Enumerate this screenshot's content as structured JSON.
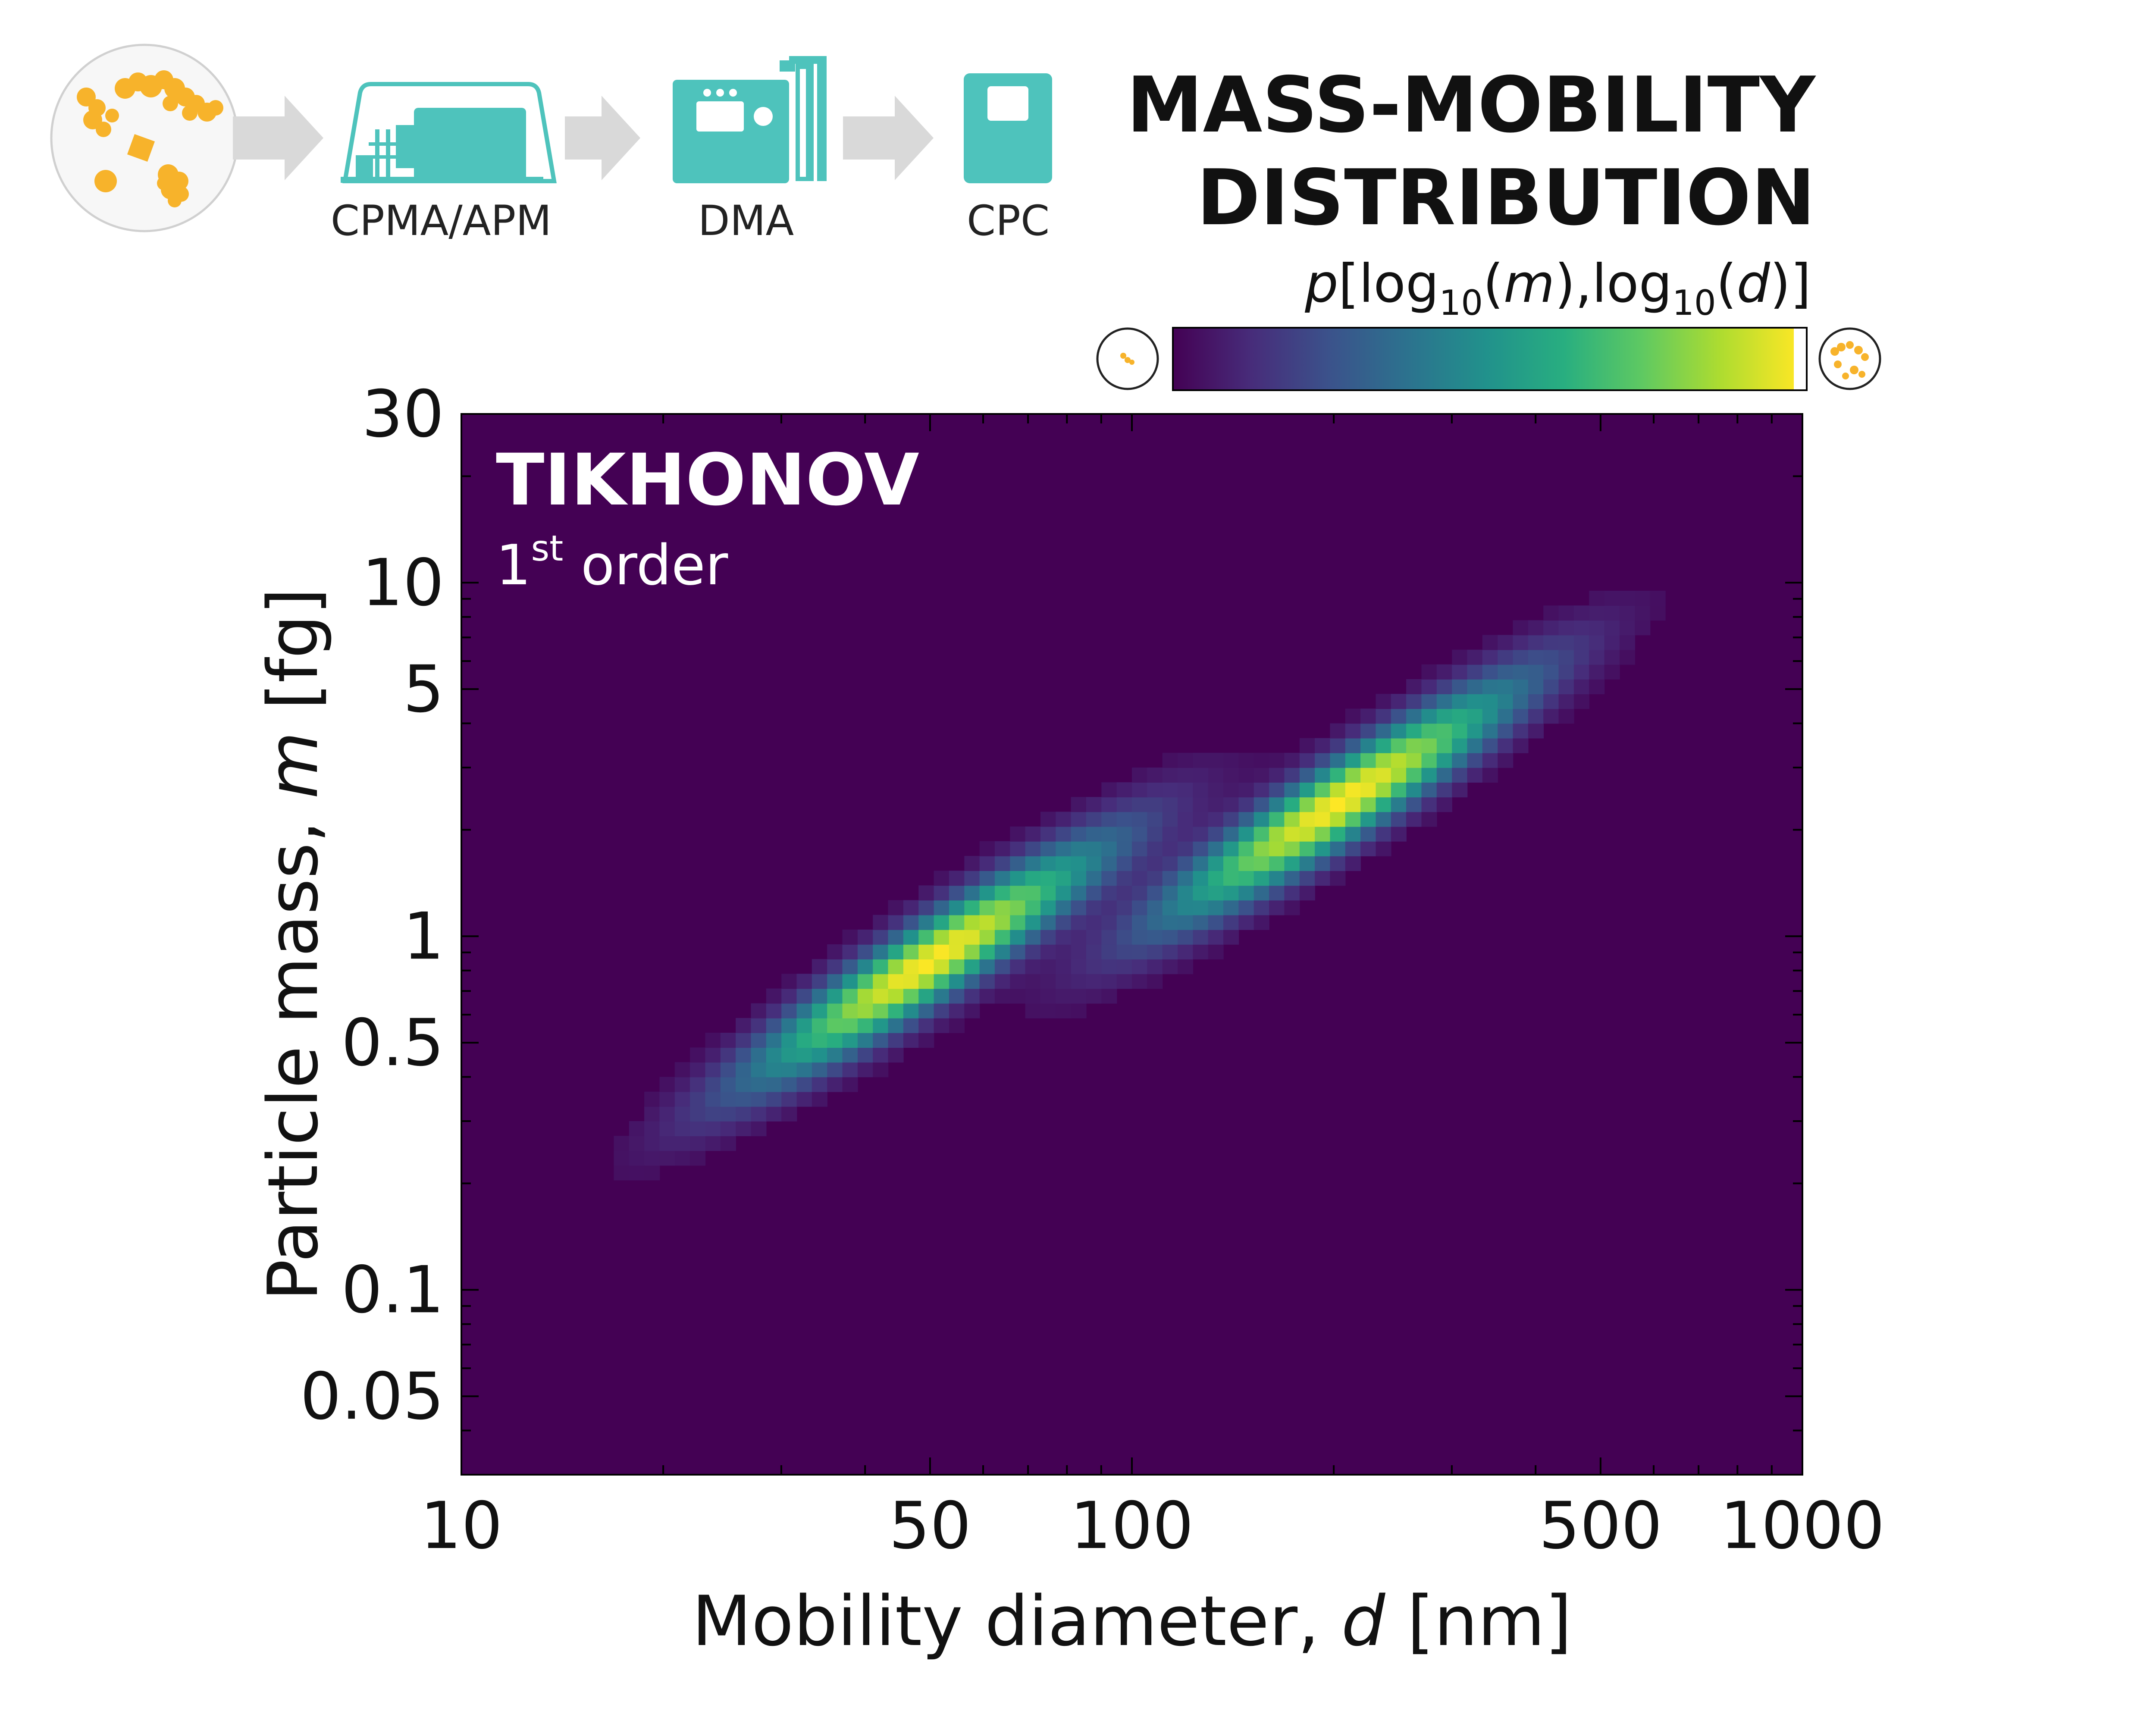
{
  "pipeline": {
    "stages": [
      "CPMA/APM",
      "DMA",
      "CPC"
    ]
  },
  "title": {
    "line1": "MASS-MOBILITY",
    "line2": "DISTRIBUTION"
  },
  "colorbar": {
    "label_p": "p",
    "label_a": "[log",
    "label_sub1": "10",
    "label_b": "(",
    "label_m": "m",
    "label_c": "),log",
    "label_sub2": "10",
    "label_d": "(",
    "label_dd": "d",
    "label_e": ")]",
    "colormap": "viridis"
  },
  "panel": {
    "method": "TIKHONOV",
    "order_num": "1",
    "order_sup": "st",
    "order_text": " order"
  },
  "colors": {
    "accent": "#4EC3BC",
    "particle": "#F7B32B",
    "arrow": "#D9D9D9",
    "background": "#440154"
  },
  "chart_data": {
    "type": "heatmap",
    "xlabel_prefix": "Mobility diameter, ",
    "xlabel_var": "d",
    "xlabel_suffix": " [nm]",
    "ylabel_prefix": "Particle mass, ",
    "ylabel_var": "m",
    "ylabel_suffix": " [fg]",
    "xscale": "log",
    "yscale": "log",
    "xlim": [
      10,
      1000
    ],
    "ylim": [
      0.03,
      30
    ],
    "xticks": [
      10,
      50,
      100,
      500,
      1000
    ],
    "xtick_labels": [
      "10",
      "50",
      "100",
      "500",
      "1000"
    ],
    "yticks": [
      0.05,
      0.1,
      0.5,
      1,
      5,
      10,
      30
    ],
    "ytick_labels": [
      "0.05",
      "0.1",
      "0.5",
      "1",
      "5",
      "10",
      "30"
    ],
    "modes": [
      {
        "peak_d_nm": 50,
        "peak_m_fg": 0.85,
        "intensity": 1.0
      },
      {
        "peak_d_nm": 205,
        "peak_m_fg": 2.4,
        "intensity": 1.0
      }
    ],
    "colorbar_range": [
      0,
      1
    ]
  }
}
